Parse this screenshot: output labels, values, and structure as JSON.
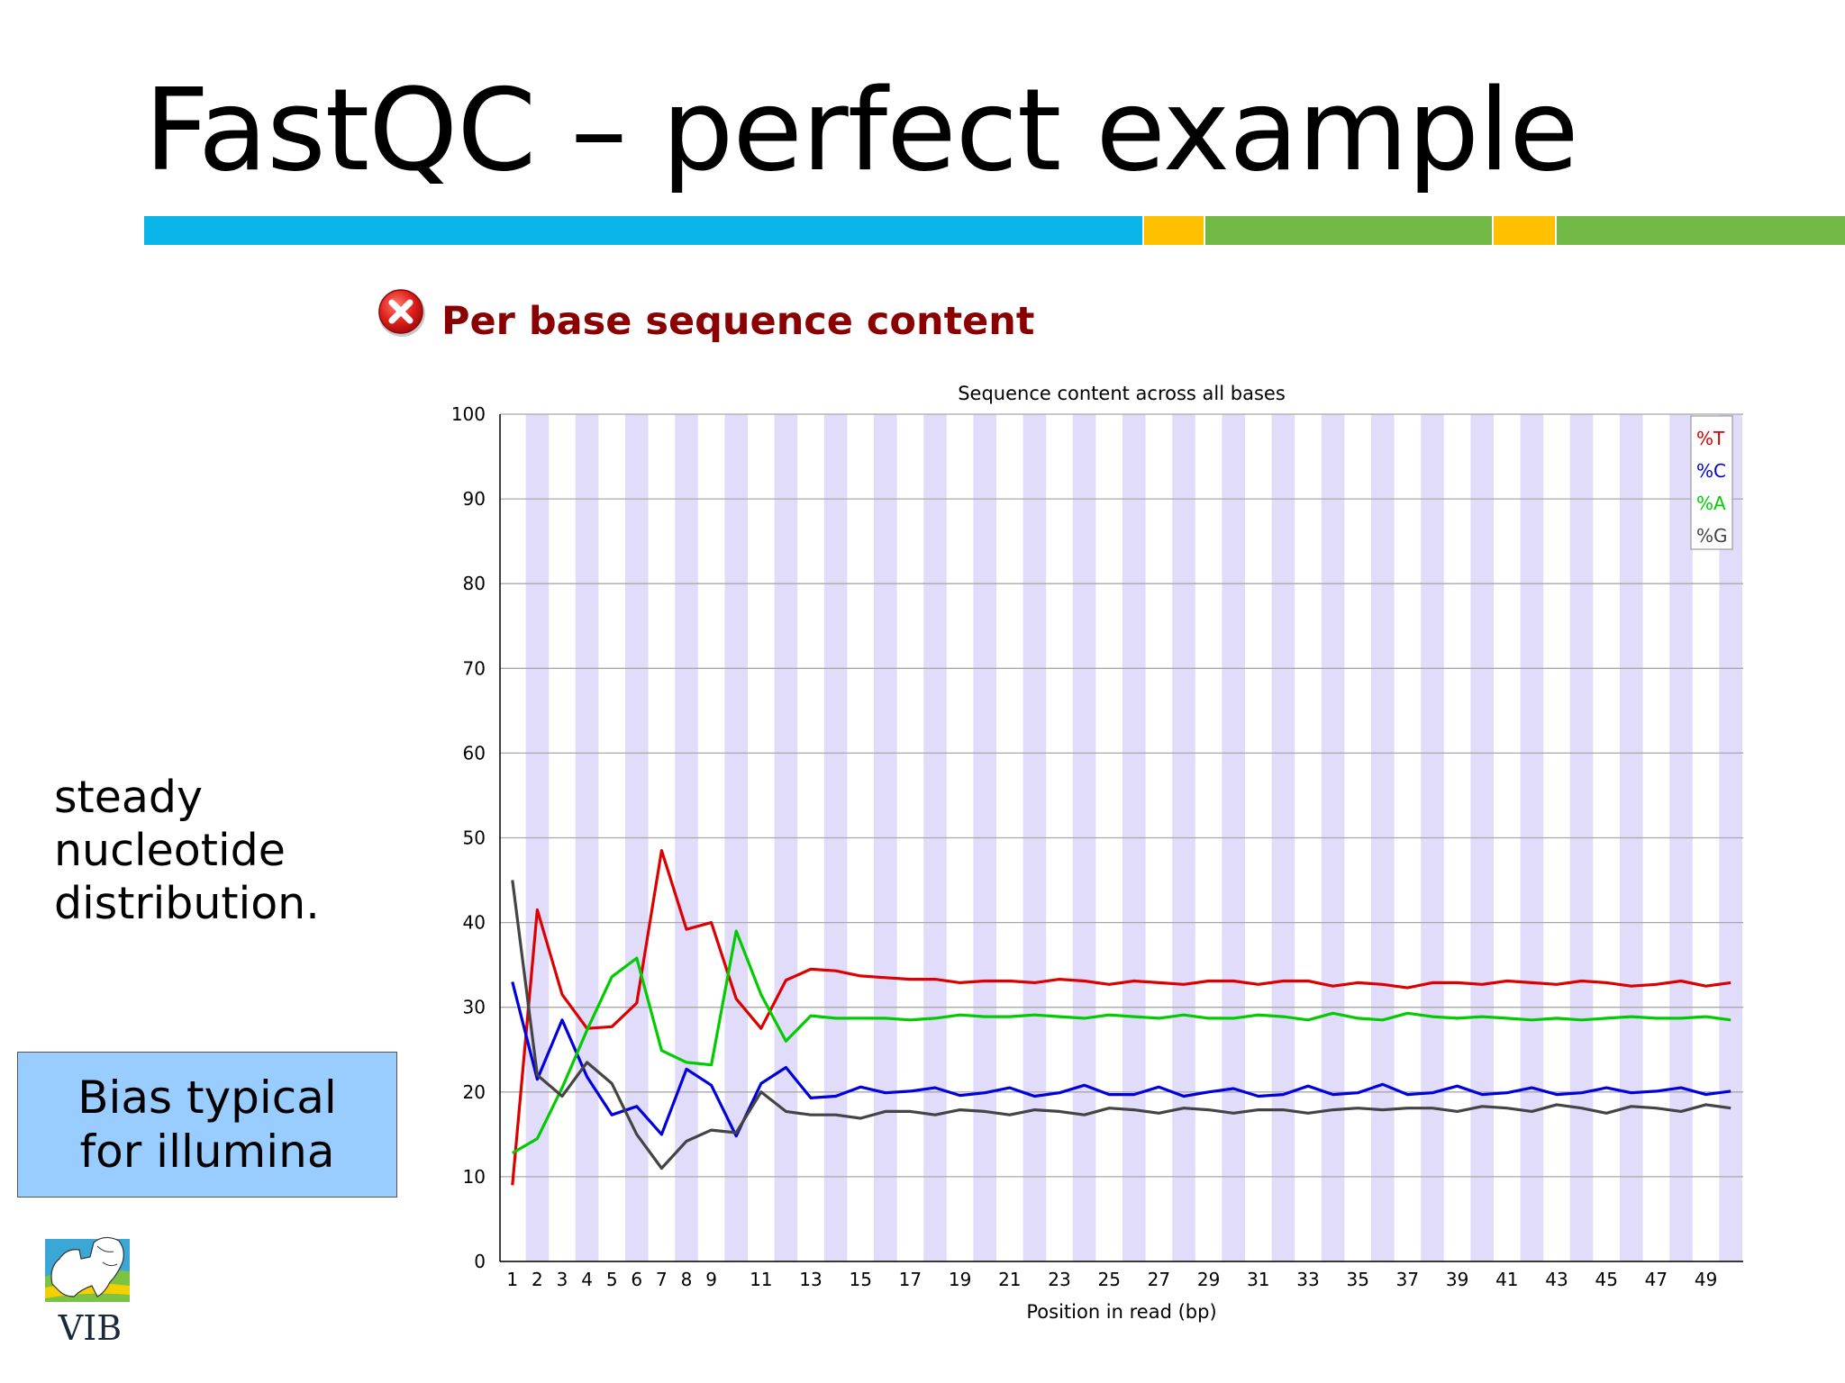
{
  "slide": {
    "title": "FastQC – perfect example",
    "note": [
      "steady",
      "nucleotide",
      "distribution."
    ],
    "callout": [
      "Bias typical",
      "for illumina"
    ],
    "logo_text": "VIB",
    "stripe_colors": [
      "#0bb4e8",
      "#ffc000",
      "#72b845",
      "#ffc000",
      "#72b845"
    ]
  },
  "panel": {
    "title": "Per base sequence content",
    "status_icon": "error-cross-icon",
    "status_color": "#e0201b"
  },
  "chart_data": {
    "type": "line",
    "title": "Sequence content across all bases",
    "xlabel": "Position in read (bp)",
    "ylabel": "",
    "ylim": [
      0,
      100
    ],
    "yticks": [
      0,
      10,
      20,
      30,
      40,
      50,
      60,
      70,
      80,
      90,
      100
    ],
    "x": [
      1,
      2,
      3,
      4,
      5,
      6,
      7,
      8,
      9,
      10,
      11,
      12,
      13,
      14,
      15,
      16,
      17,
      18,
      19,
      20,
      21,
      22,
      23,
      24,
      25,
      26,
      27,
      28,
      29,
      30,
      31,
      32,
      33,
      34,
      35,
      36,
      37,
      38,
      39,
      40,
      41,
      42,
      43,
      44,
      45,
      46,
      47,
      48,
      49,
      50
    ],
    "xtick_labels": [
      "1",
      "2",
      "3",
      "4",
      "5",
      "6",
      "7",
      "8",
      "9",
      "11",
      "13",
      "15",
      "17",
      "19",
      "21",
      "23",
      "25",
      "27",
      "29",
      "31",
      "33",
      "35",
      "37",
      "39",
      "41",
      "43",
      "45",
      "47",
      "49"
    ],
    "grid": true,
    "legend_position": "top-right",
    "series": [
      {
        "name": "%T",
        "color": "#dd0000",
        "values": [
          9,
          41.5,
          31.5,
          27.5,
          27.7,
          30.5,
          48.5,
          39.2,
          40,
          31,
          27.5,
          33.2,
          34.5,
          34.3,
          33.7,
          33.5,
          33.3,
          33.3,
          32.9,
          33.1,
          33.1,
          32.9,
          33.3,
          33.1,
          32.7,
          33.1,
          32.9,
          32.7,
          33.1,
          33.1,
          32.7,
          33.1,
          33.1,
          32.5,
          32.9,
          32.7,
          32.3,
          32.9,
          32.9,
          32.7,
          33.1,
          32.9,
          32.7,
          33.1,
          32.9,
          32.5,
          32.7,
          33.1,
          32.5,
          32.9
        ]
      },
      {
        "name": "%C",
        "color": "#0000dd",
        "values": [
          33,
          21.5,
          28.5,
          21.8,
          17.3,
          18.3,
          15,
          22.7,
          20.8,
          14.8,
          21,
          22.9,
          19.3,
          19.5,
          20.6,
          19.9,
          20.1,
          20.5,
          19.6,
          19.9,
          20.5,
          19.5,
          19.9,
          20.8,
          19.7,
          19.7,
          20.6,
          19.5,
          20.0,
          20.4,
          19.5,
          19.7,
          20.7,
          19.7,
          19.9,
          20.9,
          19.7,
          19.9,
          20.7,
          19.7,
          19.9,
          20.5,
          19.7,
          19.9,
          20.5,
          19.9,
          20.1,
          20.5,
          19.7,
          20.1
        ]
      },
      {
        "name": "%A",
        "color": "#00cc00",
        "values": [
          12.8,
          14.5,
          20.5,
          27.3,
          33.6,
          35.8,
          24.9,
          23.5,
          23.2,
          39,
          31.5,
          26,
          29,
          28.7,
          28.7,
          28.7,
          28.5,
          28.7,
          29.1,
          28.9,
          28.9,
          29.1,
          28.9,
          28.7,
          29.1,
          28.9,
          28.7,
          29.1,
          28.7,
          28.7,
          29.1,
          28.9,
          28.5,
          29.3,
          28.7,
          28.5,
          29.3,
          28.9,
          28.7,
          28.9,
          28.7,
          28.5,
          28.7,
          28.5,
          28.7,
          28.9,
          28.7,
          28.7,
          28.9,
          28.5
        ]
      },
      {
        "name": "%G",
        "color": "#444444",
        "values": [
          45,
          22,
          19.5,
          23.5,
          21,
          15,
          11,
          14.2,
          15.5,
          15.2,
          20,
          17.7,
          17.3,
          17.3,
          16.9,
          17.7,
          17.7,
          17.3,
          17.9,
          17.7,
          17.3,
          17.9,
          17.7,
          17.3,
          18.1,
          17.9,
          17.5,
          18.1,
          17.9,
          17.5,
          17.9,
          17.9,
          17.5,
          17.9,
          18.1,
          17.9,
          18.1,
          18.1,
          17.7,
          18.3,
          18.1,
          17.7,
          18.5,
          18.1,
          17.5,
          18.3,
          18.1,
          17.7,
          18.5,
          18.1
        ]
      }
    ]
  }
}
